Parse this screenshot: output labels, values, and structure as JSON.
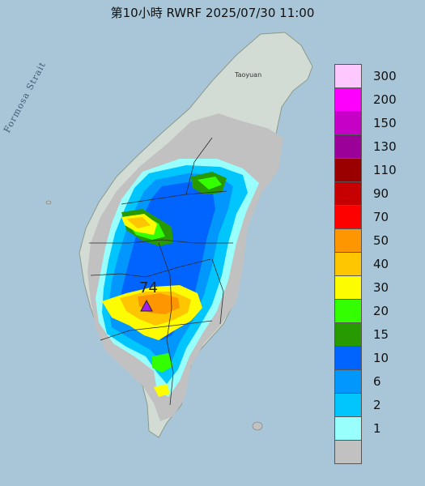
{
  "title": "第10小時  RWRF 2025/07/30 11:00",
  "labels": {
    "strait": "Formosa Strait",
    "city": "Taoyuan",
    "max_value": "74"
  },
  "legend": {
    "items": [
      {
        "label": "300",
        "color": "#fdc8fd"
      },
      {
        "label": "200",
        "color": "#fd00fd"
      },
      {
        "label": "150",
        "color": "#c700c7"
      },
      {
        "label": "130",
        "color": "#9b0099"
      },
      {
        "label": "110",
        "color": "#9a0000"
      },
      {
        "label": "90",
        "color": "#c60000"
      },
      {
        "label": "70",
        "color": "#fd0000"
      },
      {
        "label": "50",
        "color": "#fd9600"
      },
      {
        "label": "40",
        "color": "#fdc600"
      },
      {
        "label": "30",
        "color": "#fdfc00"
      },
      {
        "label": "20",
        "color": "#33ff00"
      },
      {
        "label": "15",
        "color": "#269a00"
      },
      {
        "label": "10",
        "color": "#0164fe"
      },
      {
        "label": "6",
        "color": "#0197fd"
      },
      {
        "label": "2",
        "color": "#00c6fd"
      },
      {
        "label": "1",
        "color": "#99fffd"
      },
      {
        "label": "",
        "color": "#c1c1c1"
      }
    ]
  },
  "max_marker_color": "#a020f0"
}
